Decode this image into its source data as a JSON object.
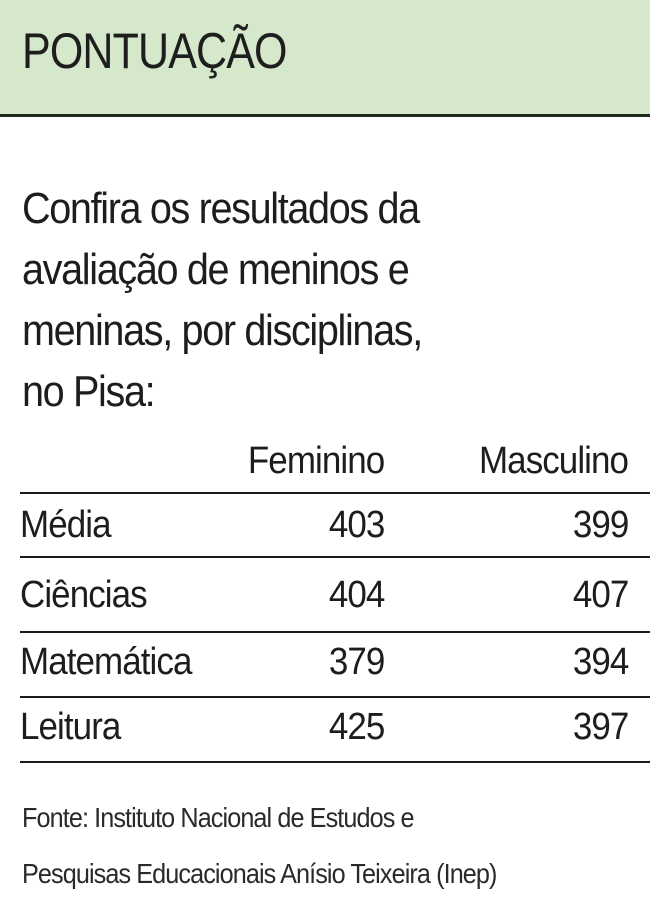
{
  "header": {
    "title": "PONTUAÇÃO",
    "background_color": "#d5e8cb"
  },
  "intro": {
    "lines": [
      "Confira os resultados da",
      "avaliação de meninos e",
      "meninas, por disciplinas,",
      "no Pisa:"
    ]
  },
  "table": {
    "columns": [
      "",
      "Feminino",
      "Masculino"
    ],
    "rows": [
      {
        "label": "Média",
        "feminino": "403",
        "masculino": "399"
      },
      {
        "label": "Ciências",
        "feminino": "404",
        "masculino": "407"
      },
      {
        "label": "Matemática",
        "feminino": "379",
        "masculino": "394"
      },
      {
        "label": "Leitura",
        "feminino": "425",
        "masculino": "397"
      }
    ]
  },
  "source": {
    "lines": [
      "Fonte: Instituto Nacional de Estudos e",
      "Pesquisas Educacionais Anísio Teixeira (Inep)"
    ]
  }
}
